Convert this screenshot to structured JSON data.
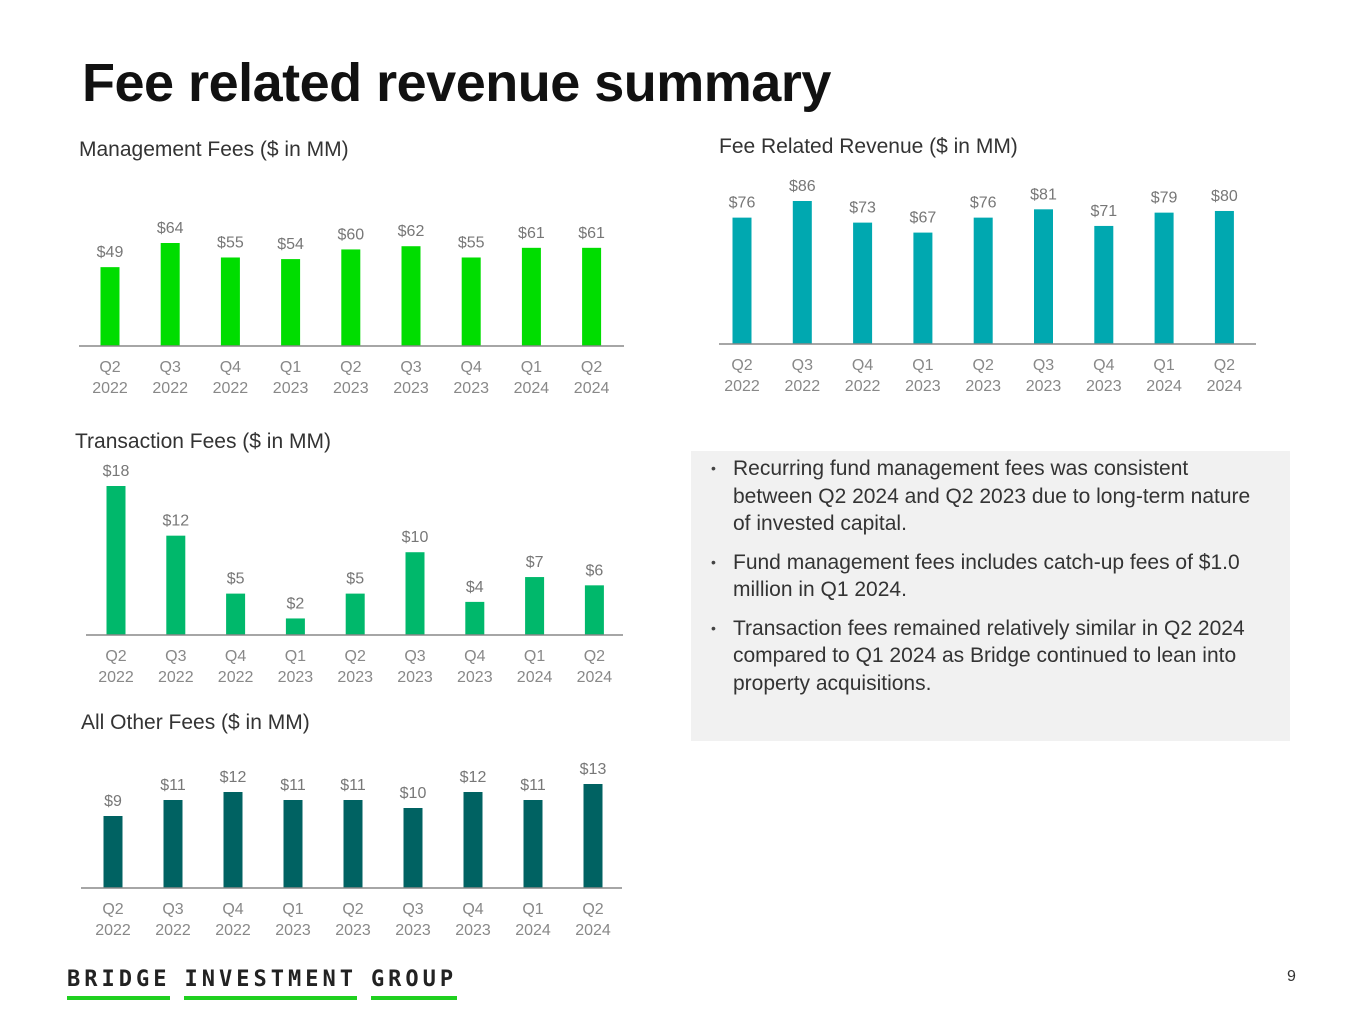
{
  "page": {
    "title": "Fee related revenue summary",
    "page_number": "9",
    "logo_words": [
      "BRIDGE",
      "INVESTMENT",
      "GROUP"
    ],
    "colors": {
      "management": "#00dd00",
      "fee_related": "#00a8b0",
      "transaction": "#00b86b",
      "other": "#006262",
      "axis": "#888888",
      "logo_underline": "#20d020",
      "callout_bg": "#f1f1f1"
    }
  },
  "callout": {
    "bullets": [
      "Recurring fund management fees was consistent between Q2 2024 and Q2 2023 due to long-term nature of invested capital.",
      "Fund management fees includes catch-up fees of $1.0 million in Q1 2024.",
      "Transaction fees remained relatively similar in Q2 2024 compared to Q1 2024 as Bridge continued to lean into property acquisitions."
    ]
  },
  "chart_data": [
    {
      "id": "management",
      "type": "bar",
      "title": "Management Fees ($ in MM)",
      "categories": [
        "Q2 2022",
        "Q3 2022",
        "Q4 2022",
        "Q1 2023",
        "Q2 2023",
        "Q3 2023",
        "Q4 2023",
        "Q1 2024",
        "Q2 2024"
      ],
      "tick_labels": [
        [
          "Q2",
          "2022"
        ],
        [
          "Q3",
          "2022"
        ],
        [
          "Q4",
          "2022"
        ],
        [
          "Q1",
          "2023"
        ],
        [
          "Q2",
          "2023"
        ],
        [
          "Q3",
          "2023"
        ],
        [
          "Q4",
          "2023"
        ],
        [
          "Q1",
          "2024"
        ],
        [
          "Q2",
          "2024"
        ]
      ],
      "values": [
        49,
        64,
        55,
        54,
        60,
        62,
        55,
        61,
        61
      ],
      "data_labels": [
        "$49",
        "$64",
        "$55",
        "$54",
        "$60",
        "$62",
        "$55",
        "$61",
        "$61"
      ],
      "xlabel": "",
      "ylabel": "",
      "ylim": [
        0,
        70
      ],
      "grid": false,
      "legend": "none",
      "color": "#00dd00"
    },
    {
      "id": "fee_related",
      "type": "bar",
      "title": "Fee Related Revenue ($ in MM)",
      "categories": [
        "Q2 2022",
        "Q3 2022",
        "Q4 2022",
        "Q1 2023",
        "Q2 2023",
        "Q3 2023",
        "Q4 2023",
        "Q1 2024",
        "Q2 2024"
      ],
      "tick_labels": [
        [
          "Q2",
          "2022"
        ],
        [
          "Q3",
          "2022"
        ],
        [
          "Q4",
          "2022"
        ],
        [
          "Q1",
          "2023"
        ],
        [
          "Q2",
          "2023"
        ],
        [
          "Q3",
          "2023"
        ],
        [
          "Q4",
          "2023"
        ],
        [
          "Q1",
          "2024"
        ],
        [
          "Q2",
          "2024"
        ]
      ],
      "values": [
        76,
        86,
        73,
        67,
        76,
        81,
        71,
        79,
        80
      ],
      "data_labels": [
        "$76",
        "$86",
        "$73",
        "$67",
        "$76",
        "$81",
        "$71",
        "$79",
        "$80"
      ],
      "xlabel": "",
      "ylabel": "",
      "ylim": [
        0,
        90
      ],
      "grid": false,
      "legend": "none",
      "color": "#00a8b0"
    },
    {
      "id": "transaction",
      "type": "bar",
      "title": "Transaction Fees ($ in MM)",
      "categories": [
        "Q2 2022",
        "Q3 2022",
        "Q4 2022",
        "Q1 2023",
        "Q2 2023",
        "Q3 2023",
        "Q4 2023",
        "Q1 2024",
        "Q2 2024"
      ],
      "tick_labels": [
        [
          "Q2",
          "2022"
        ],
        [
          "Q3",
          "2022"
        ],
        [
          "Q4",
          "2022"
        ],
        [
          "Q1",
          "2023"
        ],
        [
          "Q2",
          "2023"
        ],
        [
          "Q3",
          "2023"
        ],
        [
          "Q4",
          "2023"
        ],
        [
          "Q1",
          "2024"
        ],
        [
          "Q2",
          "2024"
        ]
      ],
      "values": [
        18,
        12,
        5,
        2,
        5,
        10,
        4,
        7,
        6
      ],
      "data_labels": [
        "$18",
        "$12",
        "$5",
        "$2",
        "$5",
        "$10",
        "$4",
        "$7",
        "$6"
      ],
      "xlabel": "",
      "ylabel": "",
      "ylim": [
        0,
        18
      ],
      "grid": false,
      "legend": "none",
      "color": "#00b86b"
    },
    {
      "id": "other",
      "type": "bar",
      "title": "All Other Fees ($ in MM)",
      "categories": [
        "Q2 2022",
        "Q3 2022",
        "Q4 2022",
        "Q1 2023",
        "Q2 2023",
        "Q3 2023",
        "Q4 2023",
        "Q1 2024",
        "Q2 2024"
      ],
      "tick_labels": [
        [
          "Q2",
          "2022"
        ],
        [
          "Q3",
          "2022"
        ],
        [
          "Q4",
          "2022"
        ],
        [
          "Q1",
          "2023"
        ],
        [
          "Q2",
          "2023"
        ],
        [
          "Q3",
          "2023"
        ],
        [
          "Q4",
          "2023"
        ],
        [
          "Q1",
          "2024"
        ],
        [
          "Q2",
          "2024"
        ]
      ],
      "values": [
        9,
        11,
        12,
        11,
        11,
        10,
        12,
        11,
        13
      ],
      "data_labels": [
        "$9",
        "$11",
        "$12",
        "$11",
        "$11",
        "$10",
        "$12",
        "$11",
        "$13"
      ],
      "xlabel": "",
      "ylabel": "",
      "ylim": [
        0,
        14
      ],
      "grid": false,
      "legend": "none",
      "color": "#006262"
    }
  ]
}
